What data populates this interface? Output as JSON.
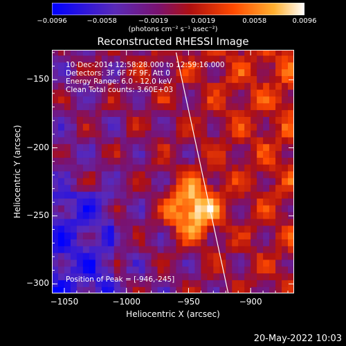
{
  "chart_data": {
    "type": "heatmap",
    "title": "Reconstructed RHESSI Image",
    "xlabel": "Heliocentric X (arcsec)",
    "ylabel": "Heliocentric Y (arcsec)",
    "xlim": [
      -1060,
      -865
    ],
    "ylim": [
      -307,
      -128
    ],
    "x_ticks": [
      -1050,
      -1000,
      -950,
      -900
    ],
    "x_tick_labels": [
      "−1050",
      "−1000",
      "−950",
      "−900"
    ],
    "y_ticks": [
      -150,
      -200,
      -250,
      -300
    ],
    "y_tick_labels": [
      "−150",
      "−200",
      "−250",
      "−300"
    ],
    "colorbar": {
      "ticks": [
        -0.0096,
        -0.0058,
        -0.0019,
        0.0019,
        0.0058,
        0.0096
      ],
      "tick_labels": [
        "−0.0096",
        "−0.0058",
        "−0.0019",
        "0.0019",
        "0.0058",
        "0.0096"
      ],
      "units": "(photons cm⁻² s⁻¹ asec⁻²)",
      "colors": [
        "#0000ff",
        "#6a2cb0",
        "#7a1070",
        "#b01010",
        "#ff4000",
        "#ffa020",
        "#ffffff"
      ]
    },
    "annotations": [
      "10-Dec-2014 12:58:28.000 to 12:59:16.000",
      "Detectors: 3F 6F 7F 9F, Att 0",
      "Energy Range: 6.0 - 12.0 keV",
      "Clean     Total counts: 3.60E+03"
    ],
    "peak_label": "Position of Peak = [-946,-245]",
    "peak": {
      "x": -946,
      "y": -245,
      "value": 0.0096
    },
    "limb_line": [
      [
        -960,
        -130
      ],
      [
        -918,
        -307
      ]
    ]
  },
  "footer": {
    "date": "20-May-2022 10:03"
  }
}
